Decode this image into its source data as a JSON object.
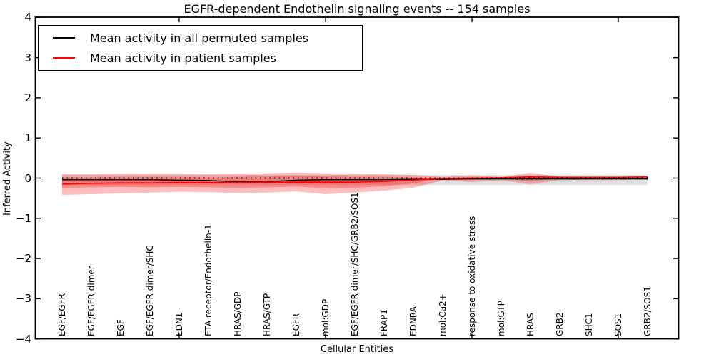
{
  "title": "EGFR-dependent Endothelin signaling events -- 154 samples",
  "legend": {
    "items": [
      {
        "label": "Mean activity in all permuted samples",
        "color": "#000000"
      },
      {
        "label": "Mean activity in patient samples",
        "color": "#ff0000"
      }
    ]
  },
  "chart_data": {
    "type": "line",
    "title": "EGFR-dependent Endothelin signaling events -- 154 samples",
    "xlabel": "Cellular Entities",
    "ylabel": "Inferred Activity",
    "ylim": [
      -4,
      4
    ],
    "yticks": [
      -4,
      -3,
      -2,
      -1,
      0,
      1,
      2,
      3,
      4
    ],
    "x_major_tick_indices": [
      4,
      9,
      14,
      19
    ],
    "grid": false,
    "legend_position": "upper left",
    "categories": [
      "EGF/EGFR",
      "EGF/EGFR dimer",
      "EGF",
      "EGF/EGFR dimer/SHC",
      "EDN1",
      "ETA receptor/Endothelin-1",
      "HRAS/GDP",
      "HRAS/GTP",
      "EGFR",
      "mol:GDP",
      "EGF/EGFR dimer/SHC/GRB2/SOS1",
      "FRAP1",
      "EDNRA",
      "mol:Ca2+",
      "response to oxidative stress",
      "mol:GTP",
      "HRAS",
      "GRB2",
      "SHC1",
      "SOS1",
      "GRB2/SOS1"
    ],
    "series": [
      {
        "name": "Mean activity in all permuted samples",
        "color": "#000000",
        "style": "solid",
        "values": [
          -0.04,
          -0.04,
          -0.04,
          -0.04,
          -0.05,
          -0.06,
          -0.09,
          -0.09,
          -0.05,
          -0.04,
          -0.04,
          -0.04,
          -0.03,
          -0.03,
          -0.02,
          -0.02,
          -0.02,
          -0.02,
          -0.02,
          -0.02,
          -0.02
        ]
      },
      {
        "name": "Mean activity in patient samples",
        "color": "#ff0000",
        "style": "solid",
        "values": [
          -0.15,
          -0.13,
          -0.12,
          -0.12,
          -0.11,
          -0.11,
          -0.11,
          -0.1,
          -0.1,
          -0.1,
          -0.1,
          -0.08,
          -0.05,
          -0.01,
          0.0,
          0.01,
          0.03,
          0.02,
          0.02,
          0.02,
          0.03
        ]
      }
    ],
    "reference_line": {
      "y": 0,
      "style": "dotted",
      "color": "#000000"
    },
    "bands": [
      {
        "name": "permuted-samples-range",
        "color": "rgba(0,0,0,0.12)",
        "top": [
          0.08,
          0.08,
          0.08,
          0.08,
          0.08,
          0.08,
          0.08,
          0.08,
          0.08,
          0.08,
          0.08,
          0.08,
          0.08,
          0.08,
          0.08,
          0.08,
          0.08,
          0.08,
          0.08,
          0.08,
          0.08
        ],
        "bottom": [
          -0.17,
          -0.17,
          -0.17,
          -0.17,
          -0.17,
          -0.17,
          -0.17,
          -0.17,
          -0.17,
          -0.17,
          -0.17,
          -0.17,
          -0.17,
          -0.17,
          -0.17,
          -0.17,
          -0.17,
          -0.17,
          -0.17,
          -0.17,
          -0.17
        ]
      },
      {
        "name": "patient-samples-outer-range",
        "color": "rgba(255,0,0,0.26)",
        "top": [
          0.1,
          0.1,
          0.11,
          0.11,
          0.11,
          0.1,
          0.11,
          0.12,
          0.14,
          0.12,
          0.11,
          0.1,
          0.08,
          0.03,
          0.06,
          0.03,
          0.13,
          0.04,
          0.03,
          0.03,
          0.05
        ],
        "bottom": [
          -0.42,
          -0.4,
          -0.38,
          -0.36,
          -0.34,
          -0.35,
          -0.37,
          -0.36,
          -0.33,
          -0.4,
          -0.36,
          -0.31,
          -0.24,
          -0.05,
          -0.1,
          -0.05,
          -0.15,
          -0.05,
          -0.04,
          -0.04,
          -0.03
        ]
      },
      {
        "name": "patient-samples-inner-range",
        "color": "rgba(255,0,0,0.28)",
        "top": [
          0.02,
          0.02,
          0.03,
          0.03,
          0.03,
          0.02,
          0.03,
          0.04,
          0.05,
          0.04,
          0.03,
          0.03,
          0.02,
          0.01,
          0.02,
          0.01,
          0.06,
          0.02,
          0.01,
          0.01,
          0.02
        ],
        "bottom": [
          -0.24,
          -0.23,
          -0.22,
          -0.23,
          -0.22,
          -0.23,
          -0.24,
          -0.23,
          -0.21,
          -0.25,
          -0.24,
          -0.2,
          -0.13,
          -0.02,
          -0.04,
          -0.02,
          -0.07,
          -0.02,
          -0.02,
          -0.02,
          -0.01
        ]
      }
    ]
  }
}
